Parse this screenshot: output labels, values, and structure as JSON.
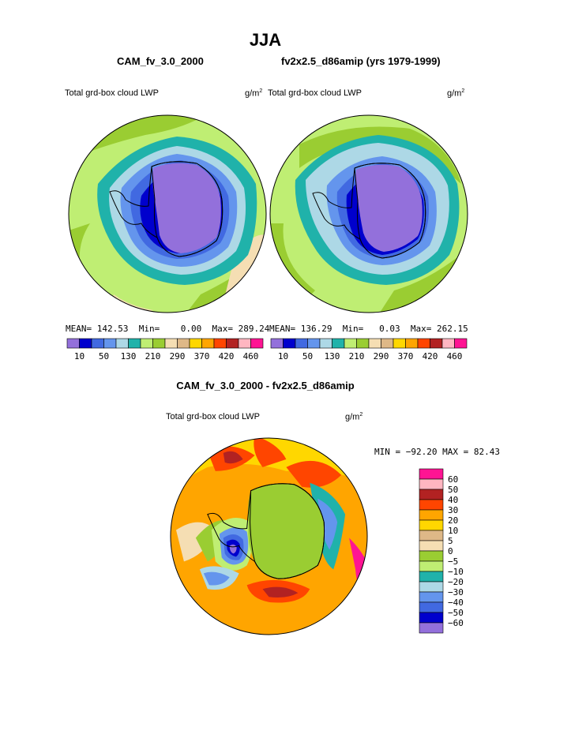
{
  "page": {
    "title": "JJA",
    "case_a": "CAM_fv_3.0_2000",
    "case_b": "fv2x2.5_d86amip (yrs 1979-1999)",
    "diff_title": "CAM_fv_3.0_2000 - fv2x2.5_d86amip"
  },
  "chart_data": [
    {
      "type": "heatmap",
      "title": "Total grd-box cloud LWP",
      "units": "g/m",
      "units_exp": "2",
      "stats": {
        "mean_label": "MEAN=",
        "mean": "142.53",
        "min_label": "Min=",
        "min": "0.00",
        "max_label": "Max=",
        "max": "289.24"
      },
      "colorbar": {
        "colors": [
          "#9370db",
          "#0000cd",
          "#4169e1",
          "#6495ed",
          "#add8e6",
          "#20b2aa",
          "#bfee73",
          "#9acd32",
          "#f5deb3",
          "#deb887",
          "#ffd700",
          "#ffa500",
          "#ff4500",
          "#b22222",
          "#ffb6c1",
          "#ff1493"
        ],
        "tick_labels": [
          "10",
          "50",
          "130",
          "210",
          "290",
          "370",
          "420",
          "460"
        ]
      },
      "features": {
        "continent": "Antarctica",
        "projection": "south polar stereographic",
        "antarctic_mean_level": "<10",
        "midlatitude_level": "210-290"
      }
    },
    {
      "type": "heatmap",
      "title": "Total grd-box cloud LWP",
      "units": "g/m",
      "units_exp": "2",
      "stats": {
        "mean_label": "MEAN=",
        "mean": "136.29",
        "min_label": "Min=",
        "min": "0.03",
        "max_label": "Max=",
        "max": "262.15"
      },
      "colorbar": {
        "colors": [
          "#9370db",
          "#0000cd",
          "#4169e1",
          "#6495ed",
          "#add8e6",
          "#20b2aa",
          "#bfee73",
          "#9acd32",
          "#f5deb3",
          "#deb887",
          "#ffd700",
          "#ffa500",
          "#ff4500",
          "#b22222",
          "#ffb6c1",
          "#ff1493"
        ],
        "tick_labels": [
          "10",
          "50",
          "130",
          "210",
          "290",
          "370",
          "420",
          "460"
        ]
      },
      "features": {
        "continent": "Antarctica",
        "projection": "south polar stereographic"
      }
    },
    {
      "type": "heatmap",
      "title": "Total grd-box cloud LWP",
      "units": "g/m",
      "units_exp": "2",
      "stats": {
        "text": "MIN = −92.20 MAX =  82.43"
      },
      "colorbar": {
        "orientation": "vertical",
        "levels_top_to_bottom": [
          "60",
          "50",
          "40",
          "30",
          "20",
          "10",
          "5",
          "0",
          "−5",
          "−10",
          "−20",
          "−30",
          "−40",
          "−50",
          "−60"
        ],
        "colors_top_to_bottom": [
          "#ff1493",
          "#ffb6c1",
          "#b22222",
          "#ff4500",
          "#ffa500",
          "#ffd700",
          "#deb887",
          "#f5deb3",
          "#9acd32",
          "#bfee73",
          "#20b2aa",
          "#add8e6",
          "#6495ed",
          "#4169e1",
          "#0000cd",
          "#9370db"
        ]
      },
      "features": {
        "continent": "Antarctica",
        "projection": "south polar stereographic"
      }
    }
  ]
}
